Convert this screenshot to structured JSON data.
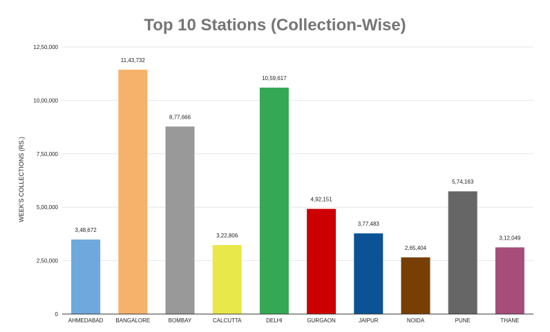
{
  "chart_data": {
    "type": "bar",
    "title": "Top 10 Stations (Collection-Wise)",
    "xlabel": "",
    "ylabel": "WEEK'S COLLECTIONS (RS.)",
    "ylim": [
      0,
      1250000
    ],
    "yticks": [
      {
        "value": 0,
        "label": "0"
      },
      {
        "value": 250000,
        "label": "2,50,000"
      },
      {
        "value": 500000,
        "label": "5,00,000"
      },
      {
        "value": 750000,
        "label": "7,50,000"
      },
      {
        "value": 1000000,
        "label": "10,00,000"
      },
      {
        "value": 1250000,
        "label": "12,50,000"
      }
    ],
    "grid": true,
    "legend": "none",
    "categories": [
      "AHMEDABAD",
      "BANGALORE",
      "BOMBAY",
      "CALCUTTA",
      "DELHI",
      "GURGAON",
      "JAIPUR",
      "NOIDA",
      "PUNE",
      "THANE"
    ],
    "values": [
      348672,
      1143732,
      877666,
      322806,
      1059617,
      492151,
      377483,
      265404,
      574163,
      312049
    ],
    "data_labels": [
      "3,48,672",
      "11,43,732",
      "8,77,666",
      "3,22,806",
      "10,59,617",
      "4,92,151",
      "3,77,483",
      "2,65,404",
      "5,74,163",
      "3,12,049"
    ],
    "colors": [
      "#6fa8dc",
      "#f6b26b",
      "#999999",
      "#e8e84a",
      "#34a853",
      "#cc0000",
      "#0b5394",
      "#783f04",
      "#666666",
      "#a64d79"
    ]
  }
}
